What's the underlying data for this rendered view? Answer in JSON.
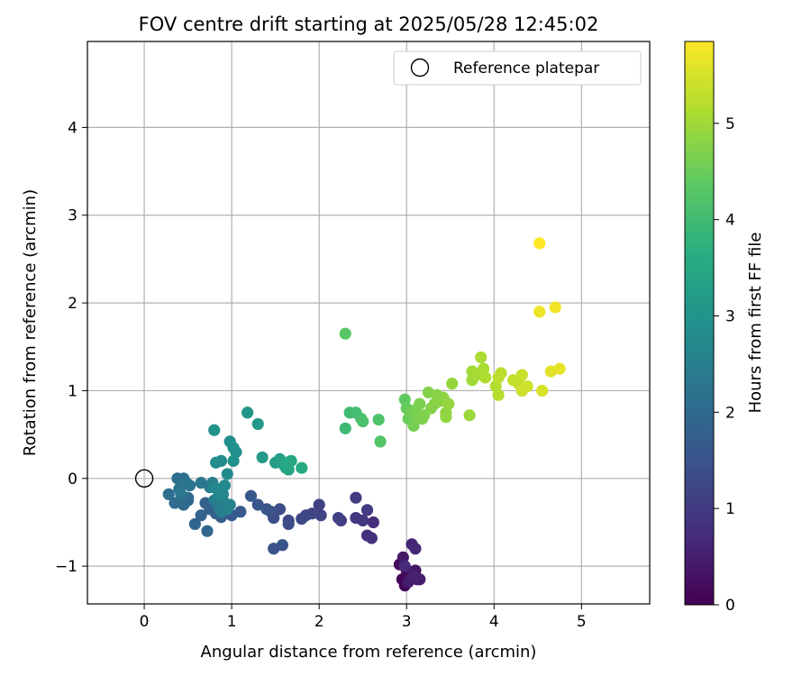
{
  "chart_data": {
    "type": "scatter",
    "title": "FOV centre drift starting at 2025/05/28 12:45:02",
    "xlabel": "Angular distance from reference (arcmin)",
    "ylabel": "Rotation from reference (arcmin)",
    "xlim": [
      -0.65,
      5.78
    ],
    "ylim": [
      -1.43,
      4.98
    ],
    "xticks": [
      "0",
      "1",
      "2",
      "3",
      "4",
      "5"
    ],
    "xtick_values": [
      0,
      1,
      2,
      3,
      4,
      5
    ],
    "yticks": [
      "−1",
      "0",
      "1",
      "2",
      "3",
      "4"
    ],
    "ytick_values": [
      -1,
      0,
      1,
      2,
      3,
      4
    ],
    "grid": true,
    "legend": {
      "position": "top-right",
      "label": "Reference platepar"
    },
    "reference_point": {
      "x": 0,
      "y": 0
    },
    "colorbar": {
      "label": "Hours from first FF file",
      "colormap": "viridis",
      "range": [
        0,
        5.85
      ],
      "ticks": [
        "0",
        "1",
        "2",
        "3",
        "4",
        "5"
      ],
      "tick_values": [
        0,
        1,
        2,
        3,
        4,
        5
      ]
    },
    "series": [
      {
        "points": [
          [
            2.95,
            -1.15,
            0.05
          ],
          [
            2.98,
            -1.22,
            0.1
          ],
          [
            3.0,
            -1.05,
            0.15
          ],
          [
            2.92,
            -0.98,
            0.2
          ],
          [
            3.05,
            -1.12,
            0.25
          ],
          [
            3.1,
            -1.05,
            0.3
          ],
          [
            3.12,
            -1.15,
            0.35
          ],
          [
            2.96,
            -0.9,
            0.4
          ],
          [
            3.02,
            -1.18,
            0.45
          ],
          [
            3.15,
            -1.15,
            0.5
          ],
          [
            3.08,
            -1.1,
            0.55
          ],
          [
            3.06,
            -0.75,
            0.6
          ],
          [
            3.1,
            -0.8,
            0.65
          ],
          [
            2.98,
            -1.0,
            0.7
          ],
          [
            2.62,
            -0.5,
            0.75
          ],
          [
            2.55,
            -0.65,
            0.8
          ],
          [
            2.6,
            -0.68,
            0.85
          ],
          [
            2.5,
            -0.48,
            0.9
          ],
          [
            2.42,
            -0.45,
            0.95
          ],
          [
            2.42,
            -0.22,
            1.0
          ],
          [
            2.55,
            -0.36,
            1.03
          ],
          [
            2.25,
            -0.48,
            1.06
          ],
          [
            2.22,
            -0.45,
            1.1
          ],
          [
            2.0,
            -0.3,
            1.13
          ],
          [
            2.02,
            -0.42,
            1.16
          ],
          [
            1.92,
            -0.4,
            1.2
          ],
          [
            1.85,
            -0.42,
            1.23
          ],
          [
            1.8,
            -0.46,
            1.26
          ],
          [
            1.65,
            -0.48,
            1.3
          ],
          [
            1.65,
            -0.52,
            1.33
          ],
          [
            1.55,
            -0.35,
            1.36
          ],
          [
            1.48,
            -0.45,
            1.4
          ],
          [
            1.45,
            -0.38,
            1.43
          ],
          [
            1.48,
            -0.8,
            1.46
          ],
          [
            1.58,
            -0.76,
            1.5
          ],
          [
            1.4,
            -0.35,
            1.53
          ],
          [
            1.3,
            -0.3,
            1.56
          ],
          [
            1.22,
            -0.2,
            1.6
          ],
          [
            1.1,
            -0.38,
            1.63
          ],
          [
            1.0,
            -0.42,
            1.66
          ],
          [
            0.95,
            -0.35,
            1.7
          ],
          [
            0.88,
            -0.44,
            1.73
          ],
          [
            0.82,
            -0.4,
            1.76
          ],
          [
            0.75,
            -0.35,
            1.8
          ],
          [
            0.7,
            -0.28,
            1.83
          ],
          [
            0.65,
            -0.42,
            1.86
          ],
          [
            0.58,
            -0.52,
            1.9
          ],
          [
            0.72,
            -0.6,
            1.93
          ],
          [
            0.5,
            -0.25,
            1.96
          ],
          [
            0.45,
            -0.3,
            2.0
          ],
          [
            0.5,
            -0.22,
            2.03
          ],
          [
            0.35,
            -0.28,
            2.06
          ],
          [
            0.28,
            -0.18,
            2.1
          ],
          [
            0.38,
            0.0,
            2.13
          ],
          [
            0.45,
            0.0,
            2.16
          ],
          [
            0.4,
            -0.12,
            2.2
          ],
          [
            0.52,
            -0.08,
            2.23
          ],
          [
            0.48,
            -0.05,
            2.26
          ],
          [
            0.42,
            -0.18,
            2.3
          ],
          [
            0.65,
            -0.05,
            2.33
          ],
          [
            0.75,
            -0.1,
            2.36
          ],
          [
            0.78,
            -0.05,
            2.4
          ],
          [
            0.8,
            -0.25,
            2.43
          ],
          [
            0.85,
            -0.32,
            2.46
          ],
          [
            0.88,
            -0.38,
            2.5
          ],
          [
            0.92,
            -0.28,
            2.53
          ],
          [
            0.95,
            -0.35,
            2.56
          ],
          [
            0.98,
            -0.3,
            2.6
          ],
          [
            0.9,
            -0.18,
            2.63
          ],
          [
            0.85,
            -0.2,
            2.66
          ],
          [
            0.8,
            -0.1,
            2.7
          ],
          [
            0.92,
            -0.08,
            2.73
          ],
          [
            0.95,
            0.05,
            2.76
          ],
          [
            0.88,
            0.2,
            2.8
          ],
          [
            0.82,
            0.18,
            2.83
          ],
          [
            0.98,
            0.42,
            2.86
          ],
          [
            1.05,
            0.3,
            2.9
          ],
          [
            1.02,
            0.35,
            2.93
          ],
          [
            1.02,
            0.2,
            2.96
          ],
          [
            0.8,
            0.55,
            3.0
          ],
          [
            1.18,
            0.75,
            3.05
          ],
          [
            1.3,
            0.62,
            3.1
          ],
          [
            1.35,
            0.24,
            3.15
          ],
          [
            1.5,
            0.18,
            3.2
          ],
          [
            1.55,
            0.22,
            3.25
          ],
          [
            1.6,
            0.15,
            3.3
          ],
          [
            1.62,
            0.12,
            3.35
          ],
          [
            1.65,
            0.1,
            3.4
          ],
          [
            1.68,
            0.2,
            3.45
          ],
          [
            1.62,
            0.18,
            3.5
          ],
          [
            1.8,
            0.12,
            3.55
          ],
          [
            2.3,
            0.57,
            3.95
          ],
          [
            2.35,
            0.75,
            4.0
          ],
          [
            2.42,
            0.75,
            4.05
          ],
          [
            2.48,
            0.68,
            4.1
          ],
          [
            2.5,
            0.65,
            4.15
          ],
          [
            2.68,
            0.67,
            4.2
          ],
          [
            2.7,
            0.42,
            4.25
          ],
          [
            2.3,
            1.65,
            4.3
          ],
          [
            2.98,
            0.9,
            4.4
          ],
          [
            3.0,
            0.8,
            4.45
          ],
          [
            3.02,
            0.68,
            4.5
          ],
          [
            3.05,
            0.75,
            4.55
          ],
          [
            3.08,
            0.6,
            4.6
          ],
          [
            3.1,
            0.78,
            4.62
          ],
          [
            3.12,
            0.72,
            4.64
          ],
          [
            3.15,
            0.85,
            4.66
          ],
          [
            3.18,
            0.68,
            4.68
          ],
          [
            3.2,
            0.72,
            4.7
          ],
          [
            3.25,
            0.98,
            4.72
          ],
          [
            3.28,
            0.8,
            4.74
          ],
          [
            3.32,
            0.85,
            4.76
          ],
          [
            3.35,
            0.95,
            4.78
          ],
          [
            3.38,
            0.88,
            4.8
          ],
          [
            3.42,
            0.92,
            4.82
          ],
          [
            3.45,
            0.75,
            4.84
          ],
          [
            3.45,
            0.7,
            4.86
          ],
          [
            3.48,
            0.85,
            4.88
          ],
          [
            3.52,
            1.08,
            4.9
          ],
          [
            3.72,
            0.72,
            4.95
          ],
          [
            3.75,
            1.12,
            5.0
          ],
          [
            3.75,
            1.22,
            5.02
          ],
          [
            3.8,
            1.18,
            5.05
          ],
          [
            3.85,
            1.38,
            5.08
          ],
          [
            3.88,
            1.25,
            5.1
          ],
          [
            3.9,
            1.15,
            5.13
          ],
          [
            4.02,
            1.05,
            5.16
          ],
          [
            4.05,
            0.95,
            5.2
          ],
          [
            4.08,
            1.2,
            5.23
          ],
          [
            4.05,
            1.15,
            5.26
          ],
          [
            4.22,
            1.12,
            5.3
          ],
          [
            4.28,
            1.08,
            5.33
          ],
          [
            4.32,
            1.18,
            5.36
          ],
          [
            4.32,
            1.0,
            5.4
          ],
          [
            4.38,
            1.05,
            5.43
          ],
          [
            4.55,
            1.0,
            5.5
          ],
          [
            4.65,
            1.22,
            5.6
          ],
          [
            4.75,
            1.25,
            5.65
          ],
          [
            4.52,
            1.9,
            5.7
          ],
          [
            4.7,
            1.95,
            5.75
          ],
          [
            4.52,
            2.68,
            5.85
          ]
        ]
      }
    ]
  }
}
